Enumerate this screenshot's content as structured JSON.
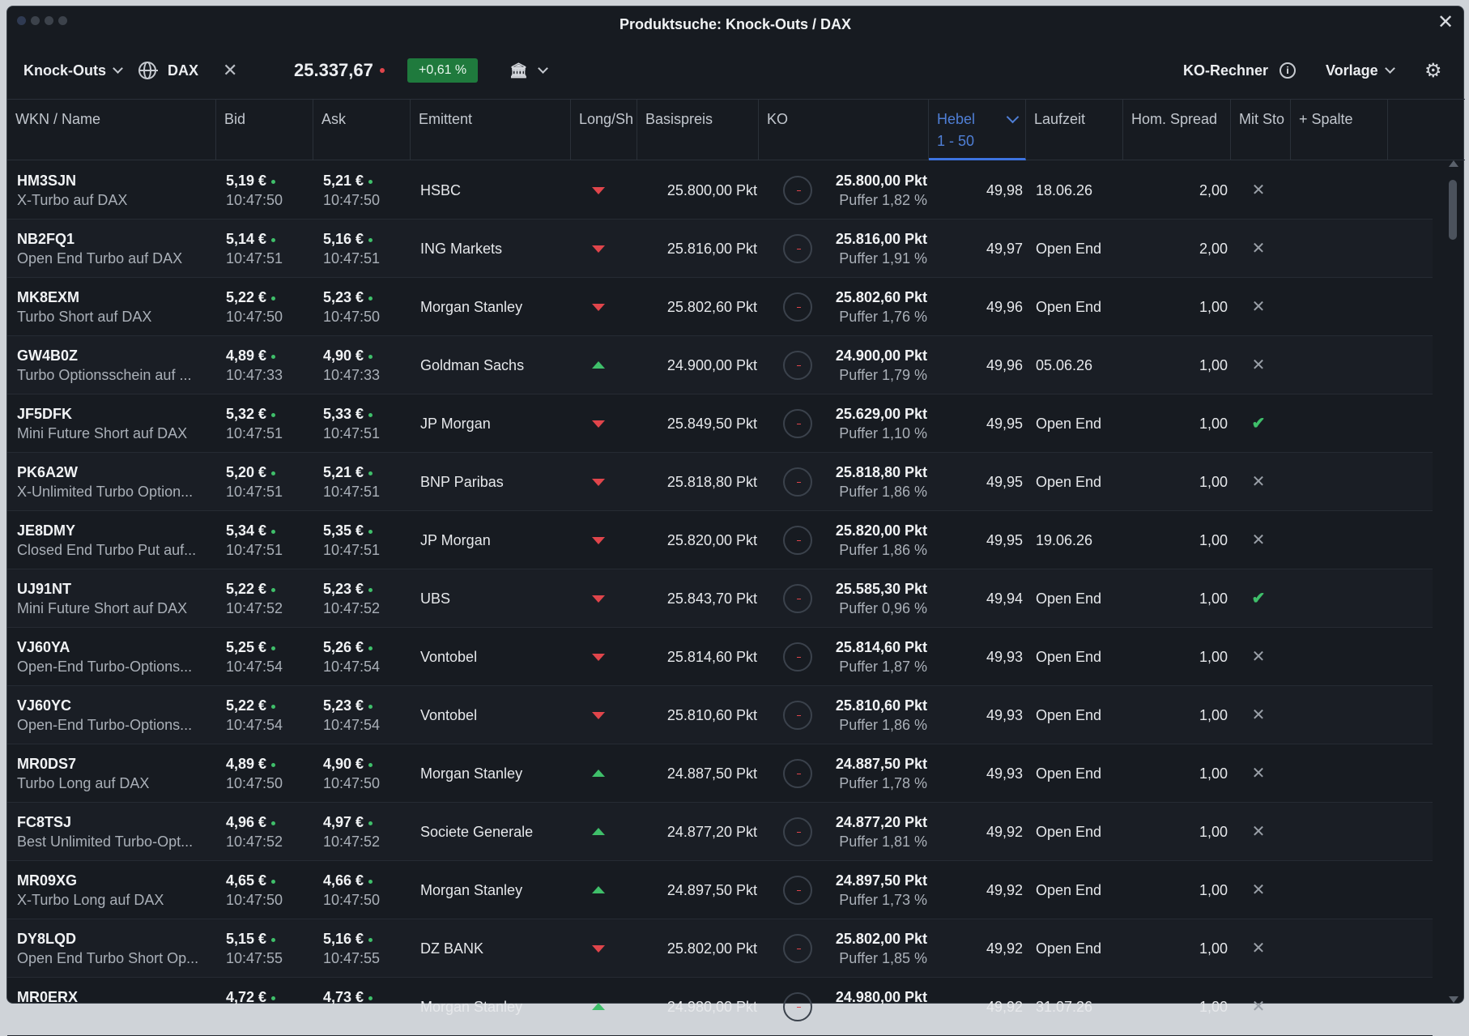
{
  "window": {
    "title": "Produktsuche: Knock-Outs / DAX"
  },
  "toolbar": {
    "product_type": "Knock-Outs",
    "underlying": "DAX",
    "price": "25.337,67",
    "change": "+0,61 %",
    "ko_rechner": "KO-Rechner",
    "vorlage": "Vorlage",
    "info_glyph": "i"
  },
  "columns": {
    "wkn": "WKN / Name",
    "bid": "Bid",
    "ask": "Ask",
    "emittent": "Emittent",
    "longshort": "Long/Sh",
    "basispreis": "Basispreis",
    "ko": "KO",
    "hebel": "Hebel",
    "hebel_range": "1 - 50",
    "laufzeit": "Laufzeit",
    "spread": "Hom. Spread",
    "mitsto": "Mit Sto",
    "add": "+ Spalte"
  },
  "colors": {
    "accent": "#3d73e0",
    "up": "#3fbf6a",
    "down": "#e0454b",
    "badge": "#1f7a3d"
  },
  "rows": [
    {
      "wkn": "HM3SJN",
      "name": "X-Turbo auf DAX",
      "bid": "5,19 €",
      "bid_time": "10:47:50",
      "ask": "5,21 €",
      "ask_time": "10:47:50",
      "emittent": "HSBC",
      "dir": "down",
      "basis": "25.800,00 Pkt",
      "ko": "25.800,00 Pkt",
      "puffer": "Puffer 1,82 %",
      "hebel": "49,98",
      "laufzeit": "18.06.26",
      "spread": "2,00",
      "sto": "no"
    },
    {
      "wkn": "NB2FQ1",
      "name": "Open End Turbo auf DAX",
      "bid": "5,14 €",
      "bid_time": "10:47:51",
      "ask": "5,16 €",
      "ask_time": "10:47:51",
      "emittent": "ING Markets",
      "dir": "down",
      "basis": "25.816,00 Pkt",
      "ko": "25.816,00 Pkt",
      "puffer": "Puffer 1,91 %",
      "hebel": "49,97",
      "laufzeit": "Open End",
      "spread": "2,00",
      "sto": "no"
    },
    {
      "wkn": "MK8EXM",
      "name": "Turbo Short auf DAX",
      "bid": "5,22 €",
      "bid_time": "10:47:50",
      "ask": "5,23 €",
      "ask_time": "10:47:50",
      "emittent": "Morgan Stanley",
      "dir": "down",
      "basis": "25.802,60 Pkt",
      "ko": "25.802,60 Pkt",
      "puffer": "Puffer 1,76 %",
      "hebel": "49,96",
      "laufzeit": "Open End",
      "spread": "1,00",
      "sto": "no"
    },
    {
      "wkn": "GW4B0Z",
      "name": "Turbo Optionsschein auf ...",
      "bid": "4,89 €",
      "bid_time": "10:47:33",
      "ask": "4,90 €",
      "ask_time": "10:47:33",
      "emittent": "Goldman Sachs",
      "dir": "up",
      "basis": "24.900,00 Pkt",
      "ko": "24.900,00 Pkt",
      "puffer": "Puffer 1,79 %",
      "hebel": "49,96",
      "laufzeit": "05.06.26",
      "spread": "1,00",
      "sto": "no"
    },
    {
      "wkn": "JF5DFK",
      "name": "Mini Future Short auf DAX",
      "bid": "5,32 €",
      "bid_time": "10:47:51",
      "ask": "5,33 €",
      "ask_time": "10:47:51",
      "emittent": "JP Morgan",
      "dir": "down",
      "basis": "25.849,50 Pkt",
      "ko": "25.629,00 Pkt",
      "puffer": "Puffer 1,10 %",
      "hebel": "49,95",
      "laufzeit": "Open End",
      "spread": "1,00",
      "sto": "yes"
    },
    {
      "wkn": "PK6A2W",
      "name": "X-Unlimited Turbo Option...",
      "bid": "5,20 €",
      "bid_time": "10:47:51",
      "ask": "5,21 €",
      "ask_time": "10:47:51",
      "emittent": "BNP Paribas",
      "dir": "down",
      "basis": "25.818,80 Pkt",
      "ko": "25.818,80 Pkt",
      "puffer": "Puffer 1,86 %",
      "hebel": "49,95",
      "laufzeit": "Open End",
      "spread": "1,00",
      "sto": "no"
    },
    {
      "wkn": "JE8DMY",
      "name": "Closed End Turbo Put auf...",
      "bid": "5,34 €",
      "bid_time": "10:47:51",
      "ask": "5,35 €",
      "ask_time": "10:47:51",
      "emittent": "JP Morgan",
      "dir": "down",
      "basis": "25.820,00 Pkt",
      "ko": "25.820,00 Pkt",
      "puffer": "Puffer 1,86 %",
      "hebel": "49,95",
      "laufzeit": "19.06.26",
      "spread": "1,00",
      "sto": "no"
    },
    {
      "wkn": "UJ91NT",
      "name": "Mini Future Short auf DAX",
      "bid": "5,22 €",
      "bid_time": "10:47:52",
      "ask": "5,23 €",
      "ask_time": "10:47:52",
      "emittent": "UBS",
      "dir": "down",
      "basis": "25.843,70 Pkt",
      "ko": "25.585,30 Pkt",
      "puffer": "Puffer 0,96 %",
      "hebel": "49,94",
      "laufzeit": "Open End",
      "spread": "1,00",
      "sto": "yes"
    },
    {
      "wkn": "VJ60YA",
      "name": "Open-End Turbo-Options...",
      "bid": "5,25 €",
      "bid_time": "10:47:54",
      "ask": "5,26 €",
      "ask_time": "10:47:54",
      "emittent": "Vontobel",
      "dir": "down",
      "basis": "25.814,60 Pkt",
      "ko": "25.814,60 Pkt",
      "puffer": "Puffer 1,87 %",
      "hebel": "49,93",
      "laufzeit": "Open End",
      "spread": "1,00",
      "sto": "no"
    },
    {
      "wkn": "VJ60YC",
      "name": "Open-End Turbo-Options...",
      "bid": "5,22 €",
      "bid_time": "10:47:54",
      "ask": "5,23 €",
      "ask_time": "10:47:54",
      "emittent": "Vontobel",
      "dir": "down",
      "basis": "25.810,60 Pkt",
      "ko": "25.810,60 Pkt",
      "puffer": "Puffer 1,86 %",
      "hebel": "49,93",
      "laufzeit": "Open End",
      "spread": "1,00",
      "sto": "no"
    },
    {
      "wkn": "MR0DS7",
      "name": "Turbo Long auf DAX",
      "bid": "4,89 €",
      "bid_time": "10:47:50",
      "ask": "4,90 €",
      "ask_time": "10:47:50",
      "emittent": "Morgan Stanley",
      "dir": "up",
      "basis": "24.887,50 Pkt",
      "ko": "24.887,50 Pkt",
      "puffer": "Puffer 1,78 %",
      "hebel": "49,93",
      "laufzeit": "Open End",
      "spread": "1,00",
      "sto": "no"
    },
    {
      "wkn": "FC8TSJ",
      "name": "Best Unlimited Turbo-Opt...",
      "bid": "4,96 €",
      "bid_time": "10:47:52",
      "ask": "4,97 €",
      "ask_time": "10:47:52",
      "emittent": "Societe Generale",
      "dir": "up",
      "basis": "24.877,20 Pkt",
      "ko": "24.877,20 Pkt",
      "puffer": "Puffer 1,81 %",
      "hebel": "49,92",
      "laufzeit": "Open End",
      "spread": "1,00",
      "sto": "no"
    },
    {
      "wkn": "MR09XG",
      "name": "X-Turbo Long auf DAX",
      "bid": "4,65 €",
      "bid_time": "10:47:50",
      "ask": "4,66 €",
      "ask_time": "10:47:50",
      "emittent": "Morgan Stanley",
      "dir": "up",
      "basis": "24.897,50 Pkt",
      "ko": "24.897,50 Pkt",
      "puffer": "Puffer 1,73 %",
      "hebel": "49,92",
      "laufzeit": "Open End",
      "spread": "1,00",
      "sto": "no"
    },
    {
      "wkn": "DY8LQD",
      "name": "Open End Turbo Short Op...",
      "bid": "5,15 €",
      "bid_time": "10:47:55",
      "ask": "5,16 €",
      "ask_time": "10:47:55",
      "emittent": "DZ BANK",
      "dir": "down",
      "basis": "25.802,00 Pkt",
      "ko": "25.802,00 Pkt",
      "puffer": "Puffer 1,85 %",
      "hebel": "49,92",
      "laufzeit": "Open End",
      "spread": "1,00",
      "sto": "no"
    },
    {
      "wkn": "MR0ERX",
      "name": "",
      "bid": "4,72 €",
      "bid_time": "",
      "ask": "4,73 €",
      "ask_time": "",
      "emittent": "Morgan Stanley",
      "dir": "up",
      "basis": "24.980,00 Pkt",
      "ko": "24.980,00 Pkt",
      "puffer": "",
      "hebel": "49,92",
      "laufzeit": "31.07.26",
      "spread": "1,00",
      "sto": "no"
    }
  ]
}
